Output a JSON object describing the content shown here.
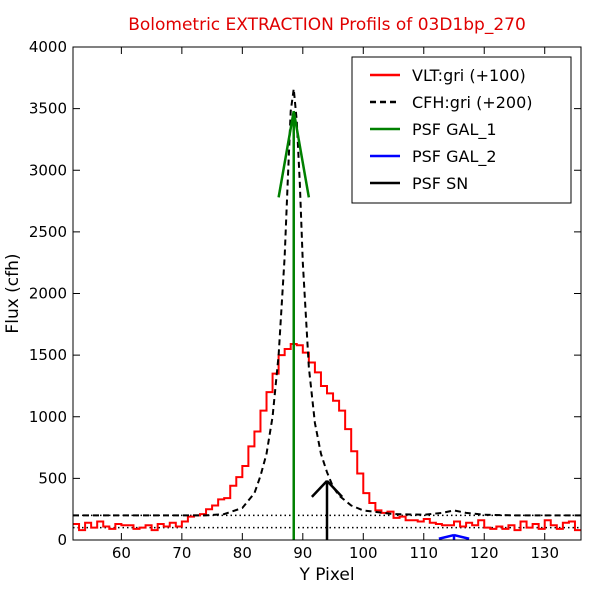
{
  "chart_data": {
    "type": "line",
    "title": "Bolometric EXTRACTION Profils of 03D1bp_270",
    "xlabel": "Y Pixel",
    "ylabel": "Flux (cfh)",
    "xlim": [
      52,
      136
    ],
    "ylim": [
      0,
      4000
    ],
    "xticks": [
      60,
      70,
      80,
      90,
      100,
      110,
      120,
      130
    ],
    "yticks": [
      0,
      500,
      1000,
      1500,
      2000,
      2500,
      3000,
      3500,
      4000
    ],
    "grid": false,
    "legend_position": "top-right",
    "series": [
      {
        "name": "VLT:gri (+100)",
        "color": "#ff0000",
        "style": "steps",
        "x": [
          52,
          53,
          54,
          55,
          56,
          57,
          58,
          59,
          60,
          61,
          62,
          63,
          64,
          65,
          66,
          67,
          68,
          69,
          70,
          71,
          72,
          73,
          74,
          75,
          76,
          77,
          78,
          79,
          80,
          81,
          82,
          83,
          84,
          85,
          86,
          87,
          88,
          89,
          90,
          91,
          92,
          93,
          94,
          95,
          96,
          97,
          98,
          99,
          100,
          101,
          102,
          103,
          104,
          105,
          106,
          107,
          108,
          109,
          110,
          111,
          112,
          113,
          114,
          115,
          116,
          117,
          118,
          119,
          120,
          121,
          122,
          123,
          124,
          125,
          126,
          127,
          128,
          129,
          130,
          131,
          132,
          133,
          134,
          135
        ],
        "y": [
          130,
          80,
          140,
          100,
          150,
          110,
          90,
          130,
          120,
          120,
          90,
          100,
          120,
          80,
          130,
          110,
          140,
          110,
          150,
          190,
          200,
          210,
          250,
          280,
          330,
          340,
          440,
          510,
          600,
          760,
          880,
          1050,
          1200,
          1350,
          1500,
          1550,
          1590,
          1580,
          1520,
          1440,
          1360,
          1250,
          1190,
          1130,
          1050,
          900,
          720,
          540,
          380,
          300,
          240,
          220,
          230,
          180,
          190,
          160,
          160,
          150,
          170,
          140,
          130,
          120,
          120,
          150,
          110,
          140,
          120,
          160,
          100,
          90,
          110,
          90,
          120,
          80,
          150,
          100,
          130,
          90,
          160,
          120,
          90,
          140,
          150,
          80
        ]
      },
      {
        "name": "CFH:gri (+200)",
        "color": "#000000",
        "style": "dashed",
        "x": [
          52,
          60,
          65,
          70,
          74,
          77,
          80,
          82,
          83,
          84,
          85,
          86,
          87,
          87.5,
          88,
          88.5,
          89,
          89.5,
          90,
          91,
          92,
          93,
          94,
          95,
          96,
          98,
          100,
          105,
          110,
          113,
          115,
          117,
          120,
          125,
          130,
          136
        ],
        "y": [
          200,
          200,
          200,
          200,
          200,
          210,
          260,
          380,
          520,
          700,
          1000,
          1500,
          2300,
          2900,
          3480,
          3660,
          3400,
          2900,
          2250,
          1400,
          950,
          700,
          550,
          430,
          360,
          280,
          240,
          210,
          205,
          220,
          240,
          220,
          205,
          200,
          200,
          200
        ]
      },
      {
        "name": "PSF GAL_1",
        "color": "#008000",
        "style": "arrow",
        "x": 88.5,
        "arrow_tip_y": 3480,
        "arrow_half_width_x": 2.5,
        "arrow_spread_y": 700
      },
      {
        "name": "PSF GAL_2",
        "color": "#0000ff",
        "style": "arrow",
        "x": 115,
        "arrow_tip_y": 40,
        "arrow_half_width_x": 2.5,
        "arrow_spread_y": 30
      },
      {
        "name": "PSF SN",
        "color": "#000000",
        "style": "arrow",
        "x": 94,
        "arrow_tip_y": 480,
        "arrow_half_width_x": 2.5,
        "arrow_spread_y": 130
      }
    ],
    "reference_lines": [
      {
        "y": 100,
        "color": "#000000",
        "style": "dotted"
      },
      {
        "y": 200,
        "color": "#000000",
        "style": "dotted"
      }
    ]
  }
}
